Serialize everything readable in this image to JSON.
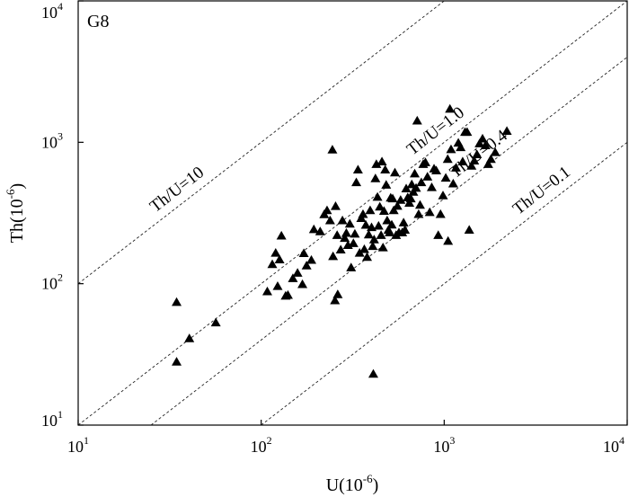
{
  "chart_data": {
    "type": "scatter",
    "title": "",
    "panel_label": "G8",
    "xlabel": "U(10",
    "xlabel_sup": "-6",
    "xlabel_end": ")",
    "ylabel": "Th(10",
    "ylabel_sup": "-6",
    "ylabel_end": ")",
    "x_scale": "log",
    "y_scale": "log",
    "xlim": [
      10,
      10000
    ],
    "ylim": [
      10,
      10000
    ],
    "grid": false,
    "legend": "none",
    "marker": "filled-triangle",
    "marker_color": "#000000",
    "x_ticks": [
      {
        "base": "10",
        "exp": "1",
        "value": 10
      },
      {
        "base": "10",
        "exp": "2",
        "value": 100
      },
      {
        "base": "10",
        "exp": "3",
        "value": 1000
      },
      {
        "base": "10",
        "exp": "4",
        "value": 10000
      }
    ],
    "y_ticks": [
      {
        "base": "10",
        "exp": "1",
        "value": 10
      },
      {
        "base": "10",
        "exp": "2",
        "value": 100
      },
      {
        "base": "10",
        "exp": "3",
        "value": 1000
      },
      {
        "base": "10",
        "exp": "4",
        "value": 10000
      }
    ],
    "reference_lines": [
      {
        "label": "Th/U=10",
        "ratio": 10,
        "label_at_u": 38.6
      },
      {
        "label": "Th/U=1.0",
        "ratio": 1.0,
        "label_at_u": 1000
      },
      {
        "label": "Th/U=0.4",
        "ratio": 0.4,
        "label_at_u": 1720
      },
      {
        "label": "Th/U=0.1",
        "ratio": 0.1,
        "label_at_u": 3800
      }
    ],
    "points": [
      [
        34.5,
        74
      ],
      [
        34.5,
        28
      ],
      [
        40.5,
        41
      ],
      [
        56.5,
        53
      ],
      [
        108,
        88
      ],
      [
        115,
        137
      ],
      [
        120,
        165
      ],
      [
        123,
        96
      ],
      [
        126,
        148
      ],
      [
        129,
        218
      ],
      [
        136,
        82
      ],
      [
        140,
        83
      ],
      [
        149,
        109
      ],
      [
        158,
        119
      ],
      [
        168,
        99
      ],
      [
        171,
        164
      ],
      [
        177,
        134
      ],
      [
        188,
        147
      ],
      [
        194,
        242
      ],
      [
        210,
        234
      ],
      [
        221,
        309
      ],
      [
        229,
        330
      ],
      [
        238,
        280
      ],
      [
        245,
        886
      ],
      [
        247,
        156
      ],
      [
        253,
        76
      ],
      [
        255,
        353
      ],
      [
        260,
        220
      ],
      [
        262,
        84
      ],
      [
        272,
        174
      ],
      [
        278,
        280
      ],
      [
        286,
        210
      ],
      [
        292,
        228
      ],
      [
        298,
        187
      ],
      [
        305,
        265
      ],
      [
        310,
        130
      ],
      [
        319,
        193
      ],
      [
        325,
        225
      ],
      [
        331,
        520
      ],
      [
        338,
        640
      ],
      [
        345,
        165
      ],
      [
        352,
        290
      ],
      [
        360,
        310
      ],
      [
        366,
        175
      ],
      [
        373,
        260
      ],
      [
        379,
        154
      ],
      [
        387,
        222
      ],
      [
        394,
        330
      ],
      [
        401,
        250
      ],
      [
        407,
        184
      ],
      [
        414,
        205
      ],
      [
        421,
        555
      ],
      [
        426,
        700
      ],
      [
        432,
        410
      ],
      [
        438,
        256
      ],
      [
        445,
        350
      ],
      [
        452,
        220
      ],
      [
        457,
        730
      ],
      [
        463,
        180
      ],
      [
        469,
        326
      ],
      [
        476,
        640
      ],
      [
        482,
        500
      ],
      [
        488,
        280
      ],
      [
        496,
        240
      ],
      [
        503,
        230
      ],
      [
        510,
        405
      ],
      [
        517,
        261
      ],
      [
        523,
        400
      ],
      [
        530,
        330
      ],
      [
        538,
        610
      ],
      [
        546,
        220
      ],
      [
        555,
        354
      ],
      [
        566,
        230
      ],
      [
        578,
        390
      ],
      [
        590,
        230
      ],
      [
        600,
        270
      ],
      [
        610,
        240
      ],
      [
        620,
        470
      ],
      [
        632,
        407
      ],
      [
        645,
        372
      ],
      [
        657,
        400
      ],
      [
        665,
        503
      ],
      [
        678,
        445
      ],
      [
        690,
        600
      ],
      [
        702,
        475
      ],
      [
        712,
        1420
      ],
      [
        725,
        310
      ],
      [
        738,
        360
      ],
      [
        750,
        520
      ],
      [
        768,
        700
      ],
      [
        790,
        720
      ],
      [
        810,
        570
      ],
      [
        833,
        320
      ],
      [
        855,
        480
      ],
      [
        880,
        650
      ],
      [
        905,
        630
      ],
      [
        928,
        220
      ],
      [
        955,
        310
      ],
      [
        985,
        420
      ],
      [
        1020,
        560
      ],
      [
        1045,
        760
      ],
      [
        1075,
        1720
      ],
      [
        1090,
        890
      ],
      [
        1120,
        510
      ],
      [
        1160,
        660
      ],
      [
        1195,
        990
      ],
      [
        1230,
        920
      ],
      [
        1262,
        730
      ],
      [
        1300,
        1180
      ],
      [
        1335,
        1180
      ],
      [
        1370,
        240
      ],
      [
        1410,
        680
      ],
      [
        1460,
        740
      ],
      [
        1510,
        820
      ],
      [
        1560,
        980
      ],
      [
        1620,
        1060
      ],
      [
        1680,
        950
      ],
      [
        1740,
        700
      ],
      [
        1800,
        760
      ],
      [
        1900,
        850
      ],
      [
        2200,
        1200
      ],
      [
        1050,
        200
      ],
      [
        410,
        23
      ]
    ]
  }
}
